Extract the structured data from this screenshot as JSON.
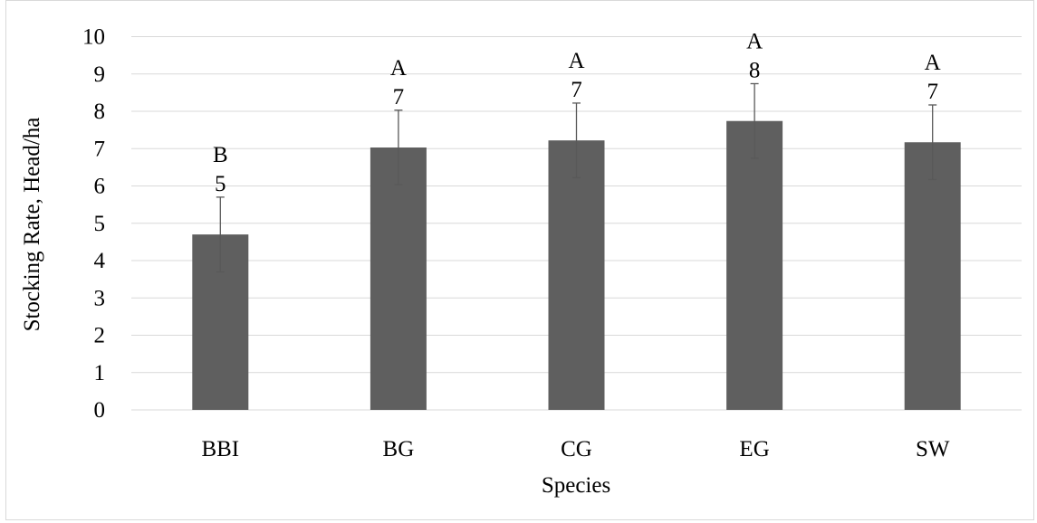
{
  "chart_data": {
    "type": "bar",
    "title": "",
    "xlabel": "Species",
    "ylabel": "Stocking Rate, Head/ha",
    "ylim": [
      0,
      10
    ],
    "yticks": [
      "0",
      "1",
      "2",
      "3",
      "4",
      "5",
      "6",
      "7",
      "8",
      "9",
      "10"
    ],
    "categories": [
      "BBI",
      "BG",
      "CG",
      "EG",
      "SW"
    ],
    "values": [
      4.7,
      7.03,
      7.22,
      7.74,
      7.17
    ],
    "error_bars": [
      1.0,
      1.0,
      1.0,
      1.0,
      1.0
    ],
    "data_labels": [
      "5",
      "7",
      "7",
      "8",
      "7"
    ],
    "significance_letters": [
      "B",
      "A",
      "A",
      "A",
      "A"
    ],
    "grid": true,
    "legend": "none",
    "colors": {
      "bar": "#5f5f5f",
      "error_bar": "#595959",
      "gridline": "#d9d9d9",
      "axis_line": "#d9d9d9",
      "text": "#000000",
      "frame": "#d9d9d9"
    }
  }
}
